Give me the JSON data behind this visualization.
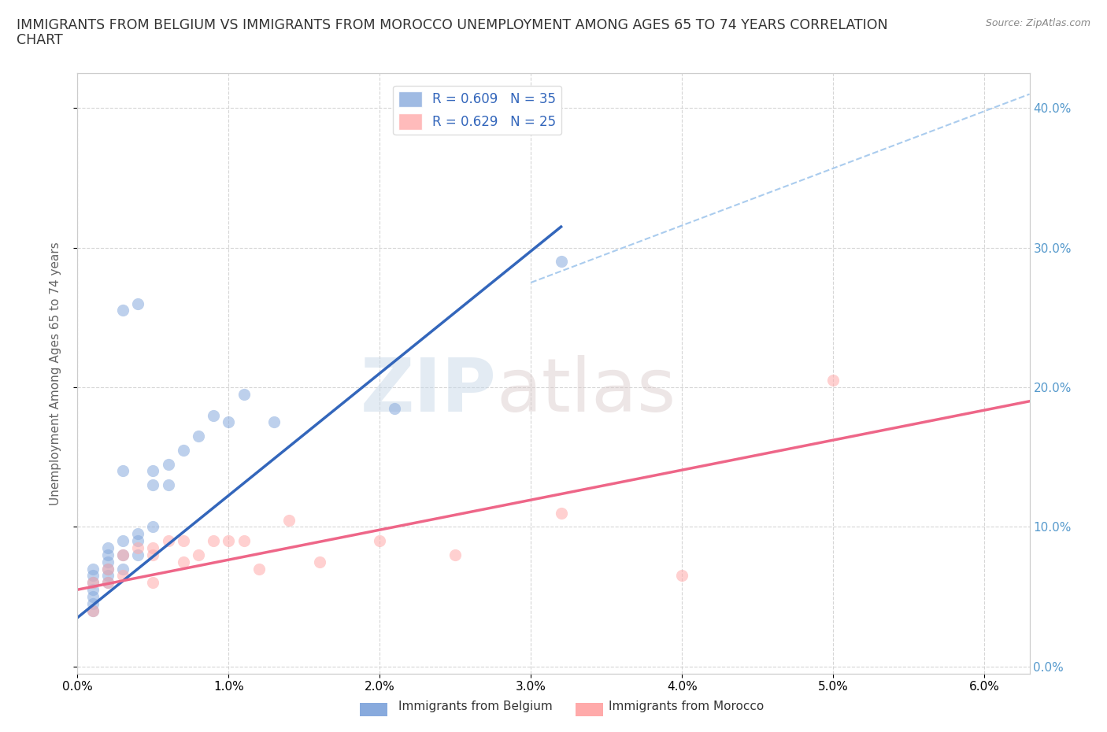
{
  "title_line1": "IMMIGRANTS FROM BELGIUM VS IMMIGRANTS FROM MOROCCO UNEMPLOYMENT AMONG AGES 65 TO 74 YEARS CORRELATION",
  "title_line2": "CHART",
  "source": "Source: ZipAtlas.com",
  "xlabel_ticks": [
    "0.0%",
    "1.0%",
    "2.0%",
    "3.0%",
    "4.0%",
    "5.0%",
    "6.0%"
  ],
  "ylabel_ticks_right": [
    "0.0%",
    "10.0%",
    "20.0%",
    "30.0%",
    "40.0%"
  ],
  "xlim": [
    0.0,
    0.063
  ],
  "ylim": [
    -0.005,
    0.425
  ],
  "ylabel": "Unemployment Among Ages 65 to 74 years",
  "legend_r1": "R = 0.609   N = 35",
  "legend_r2": "R = 0.629   N = 25",
  "color_belgium": "#88AADD",
  "color_morocco": "#FFAAAA",
  "color_line_belgium": "#3366BB",
  "color_line_morocco": "#EE6688",
  "color_line_dashed": "#AACCEE",
  "watermark_zip": "ZIP",
  "watermark_atlas": "atlas",
  "bg_color": "#FFFFFF",
  "grid_color": "#CCCCCC",
  "title_fontsize": 12.5,
  "label_fontsize": 11,
  "tick_fontsize": 11,
  "legend_fontsize": 12,
  "belgium_x": [
    0.001,
    0.001,
    0.001,
    0.001,
    0.001,
    0.001,
    0.001,
    0.002,
    0.002,
    0.002,
    0.002,
    0.002,
    0.002,
    0.003,
    0.003,
    0.003,
    0.003,
    0.003,
    0.004,
    0.004,
    0.004,
    0.004,
    0.005,
    0.005,
    0.005,
    0.006,
    0.006,
    0.007,
    0.008,
    0.009,
    0.01,
    0.011,
    0.013,
    0.021,
    0.032
  ],
  "belgium_y": [
    0.04,
    0.045,
    0.05,
    0.055,
    0.06,
    0.065,
    0.07,
    0.06,
    0.065,
    0.07,
    0.075,
    0.08,
    0.085,
    0.07,
    0.08,
    0.09,
    0.14,
    0.255,
    0.08,
    0.09,
    0.095,
    0.26,
    0.1,
    0.13,
    0.14,
    0.13,
    0.145,
    0.155,
    0.165,
    0.18,
    0.175,
    0.195,
    0.175,
    0.185,
    0.29
  ],
  "morocco_x": [
    0.001,
    0.001,
    0.002,
    0.002,
    0.003,
    0.003,
    0.004,
    0.005,
    0.005,
    0.005,
    0.006,
    0.007,
    0.007,
    0.008,
    0.009,
    0.01,
    0.011,
    0.012,
    0.014,
    0.016,
    0.02,
    0.025,
    0.032,
    0.04,
    0.05
  ],
  "morocco_y": [
    0.04,
    0.06,
    0.06,
    0.07,
    0.065,
    0.08,
    0.085,
    0.06,
    0.08,
    0.085,
    0.09,
    0.075,
    0.09,
    0.08,
    0.09,
    0.09,
    0.09,
    0.07,
    0.105,
    0.075,
    0.09,
    0.08,
    0.11,
    0.065,
    0.205
  ],
  "belgium_line_x": [
    0.0,
    0.032
  ],
  "belgium_line_y": [
    0.035,
    0.315
  ],
  "morocco_line_x": [
    0.0,
    0.063
  ],
  "morocco_line_y": [
    0.055,
    0.19
  ],
  "dashed_line_x": [
    0.03,
    0.063
  ],
  "dashed_line_y": [
    0.275,
    0.41
  ]
}
